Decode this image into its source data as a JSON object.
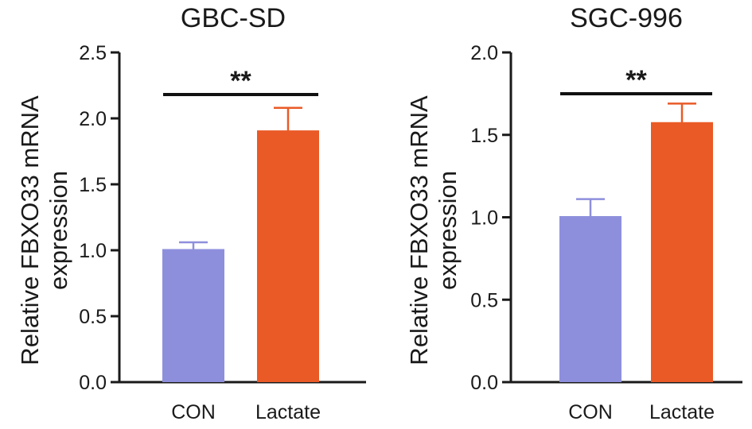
{
  "chart_data": [
    {
      "type": "bar",
      "title": "GBC-SD",
      "ylabel": "Relative FBXO33 mRNA expression",
      "ylabel_lines": [
        "Relative FBXO33 mRNA",
        "expression"
      ],
      "categories": [
        "CON",
        "Lactate"
      ],
      "values": [
        1.0,
        1.9
      ],
      "errors": [
        0.06,
        0.18
      ],
      "colors": [
        "#8e8fdc",
        "#ea5a26"
      ],
      "ylim": [
        0,
        2.5
      ],
      "yticks": [
        "0.0",
        "0.5",
        "1.0",
        "1.5",
        "2.0",
        "2.5"
      ],
      "significance": "**",
      "grid": false,
      "legend": "none"
    },
    {
      "type": "bar",
      "title": "SGC-996",
      "ylabel": "Relative FBXO33 mRNA expression",
      "ylabel_lines": [
        "Relative FBXO33 mRNA",
        "expression"
      ],
      "categories": [
        "CON",
        "Lactate"
      ],
      "values": [
        1.0,
        1.57
      ],
      "errors": [
        0.11,
        0.12
      ],
      "colors": [
        "#8e8fdc",
        "#ea5a26"
      ],
      "ylim": [
        0,
        2.0
      ],
      "yticks": [
        "0.0",
        "0.5",
        "1.0",
        "1.5",
        "2.0"
      ],
      "significance": "**",
      "grid": false,
      "legend": "none"
    }
  ]
}
